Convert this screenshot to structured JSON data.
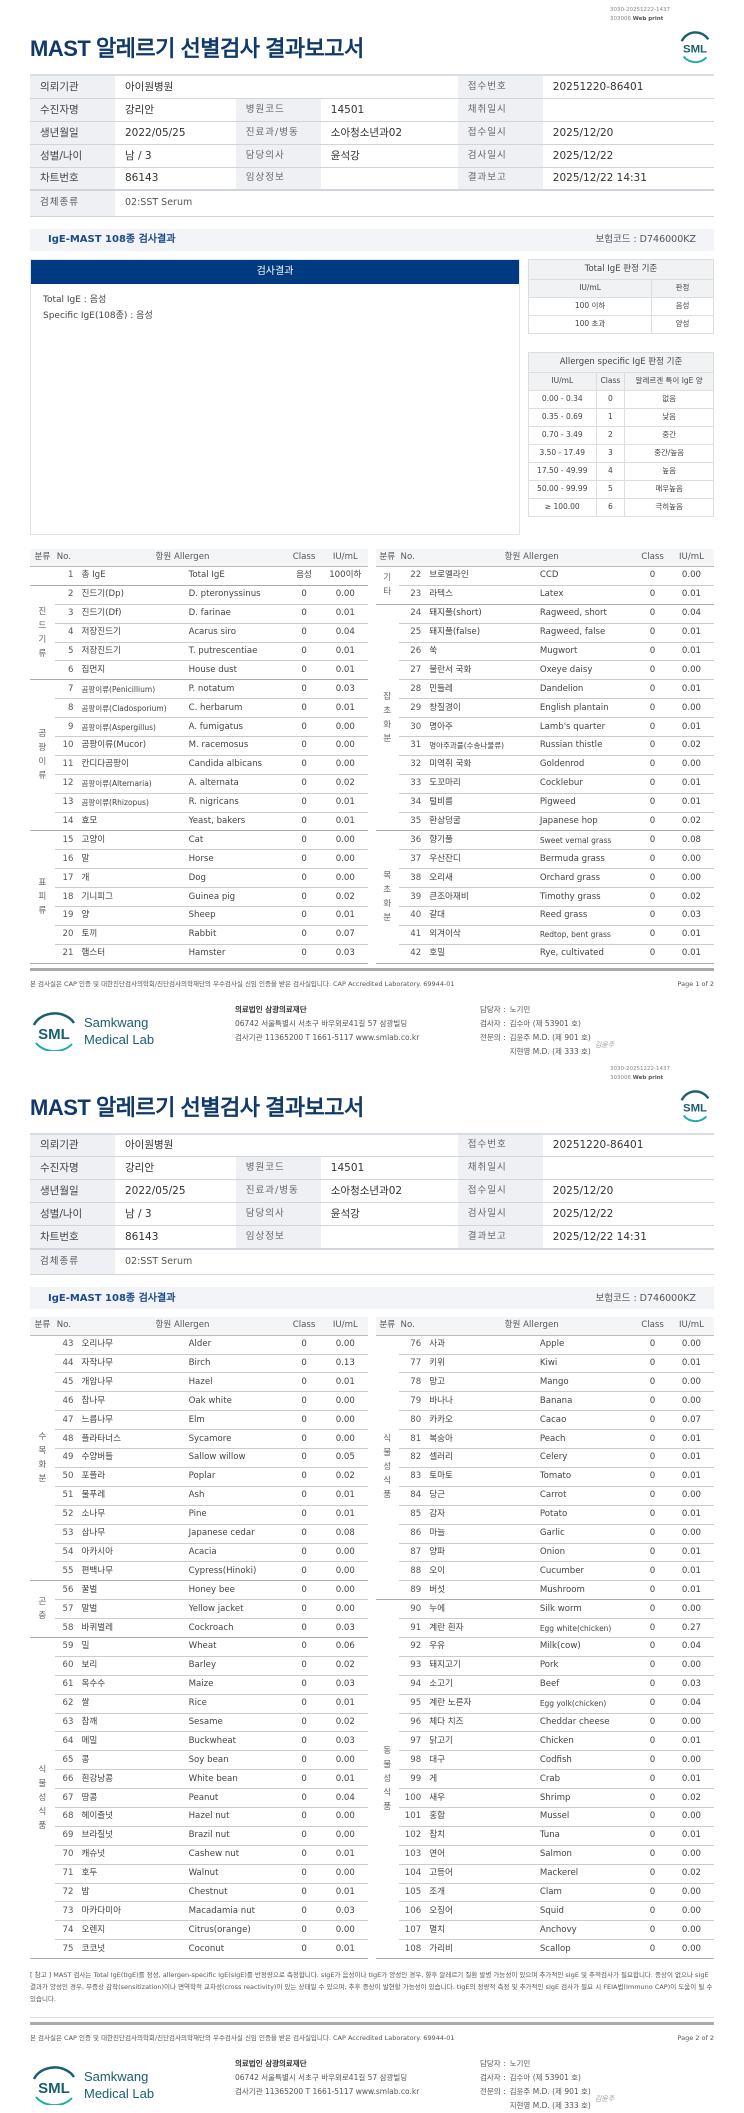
{
  "stamp": {
    "line1": "3030-20251222-1437",
    "line2_code": "303006",
    "line2_label": "Web print"
  },
  "logo_text": "SML",
  "title": "MAST 알레르기 선별검사 결과보고서",
  "info": {
    "rows": [
      [
        {
          "l": "의뢰기관",
          "v": "아이원병원"
        },
        null,
        {
          "l": "접수번호",
          "v": "20251220-86401"
        }
      ],
      [
        {
          "l": "수진자명",
          "v": "강리안"
        },
        {
          "l": "병원코드",
          "v": "14501"
        },
        {
          "l": "채취일시",
          "v": ""
        }
      ],
      [
        {
          "l": "생년월일",
          "v": "2022/05/25"
        },
        {
          "l": "진료과/병동",
          "v": "소아청소년과02"
        },
        {
          "l": "접수일시",
          "v": "2025/12/20"
        }
      ],
      [
        {
          "l": "성별/나이",
          "v": "남 / 3"
        },
        {
          "l": "담당의사",
          "v": "윤석강"
        },
        {
          "l": "검사일시",
          "v": "2025/12/22"
        }
      ],
      [
        {
          "l": "차트번호",
          "v": "86143"
        },
        {
          "l": "임상정보",
          "v": ""
        },
        {
          "l": "결과보고",
          "v": "2025/12/22 14:31"
        }
      ]
    ],
    "specimen_label": "검체종류",
    "specimen": "02:SST Serum"
  },
  "section": {
    "title": "IgE-MAST 108종 검사결과",
    "insurance_code": "보험코드 : D746000KZ"
  },
  "result": {
    "header": "검사결과",
    "lines": [
      "Total IgE : 음성",
      "Specific IgE(108종) : 음성"
    ]
  },
  "total_ref": {
    "title": "Total IgE 판정 기준",
    "cols": [
      "IU/mL",
      "판정"
    ],
    "rows": [
      [
        "100 이하",
        "음성"
      ],
      [
        "100 초과",
        "양성"
      ]
    ]
  },
  "specific_ref": {
    "title": "Allergen specific IgE 판정 기준",
    "cols": [
      "IU/mL",
      "Class",
      "알레르겐 특이 IgE 양"
    ],
    "rows": [
      [
        "0.00 - 0.34",
        "0",
        "없음"
      ],
      [
        "0.35 - 0.69",
        "1",
        "낮음"
      ],
      [
        "0.70 - 3.49",
        "2",
        "중간"
      ],
      [
        "3.50 - 17.49",
        "3",
        "중간/높음"
      ],
      [
        "17.50 - 49.99",
        "4",
        "높음"
      ],
      [
        "50.00 - 99.99",
        "5",
        "매우높음"
      ],
      [
        "≥ 100.00",
        "6",
        "극히높음"
      ]
    ]
  },
  "table_header": {
    "cat": "분류",
    "no": "No.",
    "allergen": "항원 Allergen",
    "class": "Class",
    "iu": "IU/mL"
  },
  "pages": [
    {
      "left": [
        {
          "cat": "",
          "rows": [
            [
              "1",
              "총 IgE",
              "Total IgE",
              "음성",
              "100이하"
            ]
          ]
        },
        {
          "cat": "진드기류",
          "rows": [
            [
              "2",
              "진드기(Dp)",
              "D. pteronyssinus",
              "0",
              "0.00"
            ],
            [
              "3",
              "진드기(Df)",
              "D. farinae",
              "0",
              "0.01"
            ],
            [
              "4",
              "저장진드기",
              "Acarus siro",
              "0",
              "0.04"
            ],
            [
              "5",
              "저장진드기",
              "T. putrescentiae",
              "0",
              "0.01"
            ],
            [
              "6",
              "집먼지",
              "House dust",
              "0",
              "0.01"
            ]
          ]
        },
        {
          "cat": "곰팡이류",
          "rows": [
            [
              "7",
              "곰팡이류(Penicillium)",
              "P. notatum",
              "0",
              "0.03"
            ],
            [
              "8",
              "곰팡이류(Cladosporium)",
              "C. herbarum",
              "0",
              "0.01"
            ],
            [
              "9",
              "곰팡이류(Aspergillus)",
              "A. fumigatus",
              "0",
              "0.00"
            ],
            [
              "10",
              "곰팡이류(Mucor)",
              "M. racemosus",
              "0",
              "0.00"
            ],
            [
              "11",
              "칸디다곰팡이",
              "Candida albicans",
              "0",
              "0.00"
            ],
            [
              "12",
              "곰팡이류(Alternaria)",
              "A. alternata",
              "0",
              "0.02"
            ],
            [
              "13",
              "곰팡이류(Rhizopus)",
              "R. nigricans",
              "0",
              "0.01"
            ],
            [
              "14",
              "효모",
              "Yeast, bakers",
              "0",
              "0.01"
            ]
          ]
        },
        {
          "cat": "표피류",
          "rows": [
            [
              "15",
              "고양이",
              "Cat",
              "0",
              "0.00"
            ],
            [
              "16",
              "말",
              "Horse",
              "0",
              "0.00"
            ],
            [
              "17",
              "개",
              "Dog",
              "0",
              "0.00"
            ],
            [
              "18",
              "기니피그",
              "Guinea pig",
              "0",
              "0.02"
            ],
            [
              "19",
              "양",
              "Sheep",
              "0",
              "0.01"
            ],
            [
              "20",
              "토끼",
              "Rabbit",
              "0",
              "0.07"
            ],
            [
              "21",
              "햄스터",
              "Hamster",
              "0",
              "0.03"
            ]
          ]
        }
      ],
      "right": [
        {
          "cat": "기타",
          "rows": [
            [
              "22",
              "브로멜라인",
              "CCD",
              "0",
              "0.00"
            ],
            [
              "23",
              "라텍스",
              "Latex",
              "0",
              "0.01"
            ]
          ]
        },
        {
          "cat": "잡초화분",
          "rows": [
            [
              "24",
              "돼지풀(short)",
              "Ragweed, short",
              "0",
              "0.04"
            ],
            [
              "25",
              "돼지풀(false)",
              "Ragweed, false",
              "0",
              "0.01"
            ],
            [
              "26",
              "쑥",
              "Mugwort",
              "0",
              "0.01"
            ],
            [
              "27",
              "불란서 국화",
              "Oxeye daisy",
              "0",
              "0.00"
            ],
            [
              "28",
              "민들레",
              "Dandelion",
              "0",
              "0.01"
            ],
            [
              "29",
              "창질경이",
              "English plantain",
              "0",
              "0.00"
            ],
            [
              "30",
              "명아주",
              "Lamb's quarter",
              "0",
              "0.01"
            ],
            [
              "31",
              "명아주과풀(수송나물류)",
              "Russian thistle",
              "0",
              "0.02"
            ],
            [
              "32",
              "미역취 국화",
              "Goldenrod",
              "0",
              "0.00"
            ],
            [
              "33",
              "도꼬마리",
              "Cocklebur",
              "0",
              "0.01"
            ],
            [
              "34",
              "털비름",
              "Pigweed",
              "0",
              "0.01"
            ],
            [
              "35",
              "환삼덩굴",
              "Japanese hop",
              "0",
              "0.02"
            ]
          ]
        },
        {
          "cat": "목초화분",
          "rows": [
            [
              "36",
              "향기풀",
              "Sweet vernal grass",
              "0",
              "0.08"
            ],
            [
              "37",
              "우산잔디",
              "Bermuda grass",
              "0",
              "0.00"
            ],
            [
              "38",
              "오리새",
              "Orchard grass",
              "0",
              "0.00"
            ],
            [
              "39",
              "큰조아재비",
              "Timothy grass",
              "0",
              "0.02"
            ],
            [
              "40",
              "갈대",
              "Reed grass",
              "0",
              "0.03"
            ],
            [
              "41",
              "외겨이삭",
              "Redtop, bent grass",
              "0",
              "0.01"
            ],
            [
              "42",
              "호밀",
              "Rye, cultivated",
              "0",
              "0.01"
            ]
          ]
        }
      ]
    },
    {
      "left": [
        {
          "cat": "수목화분",
          "rows": [
            [
              "43",
              "오리나무",
              "Alder",
              "0",
              "0.00"
            ],
            [
              "44",
              "자작나무",
              "Birch",
              "0",
              "0.13"
            ],
            [
              "45",
              "개암나무",
              "Hazel",
              "0",
              "0.01"
            ],
            [
              "46",
              "참나무",
              "Oak white",
              "0",
              "0.00"
            ],
            [
              "47",
              "느릅나무",
              "Elm",
              "0",
              "0.00"
            ],
            [
              "48",
              "플라타너스",
              "Sycamore",
              "0",
              "0.00"
            ],
            [
              "49",
              "수양버들",
              "Sallow willow",
              "0",
              "0.05"
            ],
            [
              "50",
              "포플라",
              "Poplar",
              "0",
              "0.02"
            ],
            [
              "51",
              "물푸레",
              "Ash",
              "0",
              "0.01"
            ],
            [
              "52",
              "소나무",
              "Pine",
              "0",
              "0.01"
            ],
            [
              "53",
              "삼나무",
              "Japanese cedar",
              "0",
              "0.08"
            ],
            [
              "54",
              "아카시아",
              "Acacia",
              "0",
              "0.00"
            ],
            [
              "55",
              "편백나무",
              "Cypress(Hinoki)",
              "0",
              "0.00"
            ]
          ]
        },
        {
          "cat": "곤충",
          "rows": [
            [
              "56",
              "꿀벌",
              "Honey bee",
              "0",
              "0.00"
            ],
            [
              "57",
              "말벌",
              "Yellow jacket",
              "0",
              "0.00"
            ],
            [
              "58",
              "바퀴벌레",
              "Cockroach",
              "0",
              "0.03"
            ]
          ]
        },
        {
          "cat": "식물성식품",
          "rows": [
            [
              "59",
              "밀",
              "Wheat",
              "0",
              "0.06"
            ],
            [
              "60",
              "보리",
              "Barley",
              "0",
              "0.02"
            ],
            [
              "61",
              "옥수수",
              "Maize",
              "0",
              "0.03"
            ],
            [
              "62",
              "쌀",
              "Rice",
              "0",
              "0.01"
            ],
            [
              "63",
              "참깨",
              "Sesame",
              "0",
              "0.02"
            ],
            [
              "64",
              "메밀",
              "Buckwheat",
              "0",
              "0.03"
            ],
            [
              "65",
              "콩",
              "Soy bean",
              "0",
              "0.00"
            ],
            [
              "66",
              "흰강낭콩",
              "White bean",
              "0",
              "0.01"
            ],
            [
              "67",
              "땅콩",
              "Peanut",
              "0",
              "0.04"
            ],
            [
              "68",
              "헤이즐넛",
              "Hazel nut",
              "0",
              "0.00"
            ],
            [
              "69",
              "브라질넛",
              "Brazil nut",
              "0",
              "0.00"
            ],
            [
              "70",
              "캐슈넛",
              "Cashew nut",
              "0",
              "0.01"
            ],
            [
              "71",
              "호두",
              "Walnut",
              "0",
              "0.00"
            ],
            [
              "72",
              "밤",
              "Chestnut",
              "0",
              "0.01"
            ],
            [
              "73",
              "마카다미아",
              "Macadamia nut",
              "0",
              "0.03"
            ],
            [
              "74",
              "오렌지",
              "Citrus(orange)",
              "0",
              "0.00"
            ],
            [
              "75",
              "코코넛",
              "Coconut",
              "0",
              "0.01"
            ]
          ]
        }
      ],
      "right": [
        {
          "cat": "식물성식품",
          "rows": [
            [
              "76",
              "사과",
              "Apple",
              "0",
              "0.00"
            ],
            [
              "77",
              "키위",
              "Kiwi",
              "0",
              "0.01"
            ],
            [
              "78",
              "망고",
              "Mango",
              "0",
              "0.00"
            ],
            [
              "79",
              "바나나",
              "Banana",
              "0",
              "0.00"
            ],
            [
              "80",
              "카카오",
              "Cacao",
              "0",
              "0.07"
            ],
            [
              "81",
              "복숭아",
              "Peach",
              "0",
              "0.01"
            ],
            [
              "82",
              "셀러리",
              "Celery",
              "0",
              "0.01"
            ],
            [
              "83",
              "토마토",
              "Tomato",
              "0",
              "0.01"
            ],
            [
              "84",
              "당근",
              "Carrot",
              "0",
              "0.00"
            ],
            [
              "85",
              "감자",
              "Potato",
              "0",
              "0.01"
            ],
            [
              "86",
              "마늘",
              "Garlic",
              "0",
              "0.00"
            ],
            [
              "87",
              "양파",
              "Onion",
              "0",
              "0.01"
            ],
            [
              "88",
              "오이",
              "Cucumber",
              "0",
              "0.01"
            ],
            [
              "89",
              "버섯",
              "Mushroom",
              "0",
              "0.01"
            ]
          ]
        },
        {
          "cat": "동물성식품",
          "rows": [
            [
              "90",
              "누에",
              "Silk worm",
              "0",
              "0.00"
            ],
            [
              "91",
              "계란 흰자",
              "Egg white(chicken)",
              "0",
              "0.27"
            ],
            [
              "92",
              "우유",
              "Milk(cow)",
              "0",
              "0.04"
            ],
            [
              "93",
              "돼지고기",
              "Pork",
              "0",
              "0.00"
            ],
            [
              "94",
              "소고기",
              "Beef",
              "0",
              "0.03"
            ],
            [
              "95",
              "계란 노른자",
              "Egg yolk(chicken)",
              "0",
              "0.04"
            ],
            [
              "96",
              "체다 치즈",
              "Cheddar cheese",
              "0",
              "0.00"
            ],
            [
              "97",
              "닭고기",
              "Chicken",
              "0",
              "0.01"
            ],
            [
              "98",
              "대구",
              "Codfish",
              "0",
              "0.00"
            ],
            [
              "99",
              "게",
              "Crab",
              "0",
              "0.01"
            ],
            [
              "100",
              "새우",
              "Shrimp",
              "0",
              "0.02"
            ],
            [
              "101",
              "홍합",
              "Mussel",
              "0",
              "0.00"
            ],
            [
              "102",
              "참치",
              "Tuna",
              "0",
              "0.01"
            ],
            [
              "103",
              "연어",
              "Salmon",
              "0",
              "0.00"
            ],
            [
              "104",
              "고등어",
              "Mackerel",
              "0",
              "0.02"
            ],
            [
              "105",
              "조개",
              "Clam",
              "0",
              "0.00"
            ],
            [
              "106",
              "오징어",
              "Squid",
              "0",
              "0.00"
            ],
            [
              "107",
              "멸치",
              "Anchovy",
              "0",
              "0.00"
            ],
            [
              "108",
              "가리비",
              "Scallop",
              "0",
              "0.00"
            ]
          ]
        }
      ]
    }
  ],
  "note": "[ 참고 ] MAST 검사는 Total IgE(tIgE)를 정성, allergen-specific IgE(sIgE)를 반정량으로 측정합니다. sIgE가 음성이나 tIgE가 양성인 경우, 향후 알레르기 질환 발병 가능성이 있으며 추가적인 sIgE 및 추적검사가 필요합니다. 증상이 없으나 sIgE 결과가 양성인 경우, 무증상 감작(sensitization)이나 면역학적 교차성(cross reactivity)이 있는 상태일 수 있으며, 추후 증상이 발현할 가능성이 있습니다. tIgE의 정량적 측정 및 추가적인 sIgE 검사가 필요 시 FEIA법(Immuno CAP)이 도움이 될 수 있습니다.",
  "footer": {
    "disclaimer": "본 검사실은 CAP 인증 및 대한진단검사의학회/진단검사의학재단의 우수검사실 신임 인증을 받은 검사실입니다.  CAP Accredited Laboratory. 69944-01",
    "page_labels": [
      "Page 1 of 2",
      "Page 2 of 2"
    ],
    "lab_name_1": "Samkwang",
    "lab_name_2": "Medical Lab",
    "org": "의료법인 삼광의료재단",
    "address": "06742 서울특별시 서초구 바우뫼로41길 57 삼광빌딩",
    "contact": "검사기관 11365200  T 1661-5117  www.smlab.co.kr",
    "staff": [
      {
        "role": "담당자 :",
        "name": "노기민"
      },
      {
        "role": "검사자 :",
        "name": "김수아 (제 53901 호)"
      },
      {
        "role": "전문의 :",
        "name": "김윤주 M.D. (제 901 호)"
      },
      {
        "role": "",
        "name": "지현영 M.D. (제 333 호)"
      }
    ],
    "signature": "김윤주"
  },
  "colors": {
    "navy": "#003a80",
    "title": "#113a6b",
    "logo": "#1a5f6e"
  }
}
